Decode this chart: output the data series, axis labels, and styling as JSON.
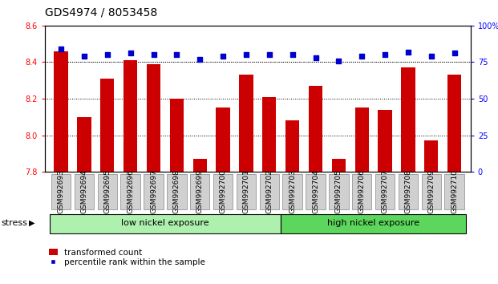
{
  "title": "GDS4974 / 8053458",
  "samples": [
    "GSM992693",
    "GSM992694",
    "GSM992695",
    "GSM992696",
    "GSM992697",
    "GSM992698",
    "GSM992699",
    "GSM992700",
    "GSM992701",
    "GSM992702",
    "GSM992703",
    "GSM992704",
    "GSM992705",
    "GSM992706",
    "GSM992707",
    "GSM992708",
    "GSM992709",
    "GSM992710"
  ],
  "transformed_count": [
    8.46,
    8.1,
    8.31,
    8.41,
    8.39,
    8.2,
    7.87,
    8.15,
    8.33,
    8.21,
    8.08,
    8.27,
    7.87,
    8.15,
    8.14,
    8.37,
    7.97,
    8.33
  ],
  "percentile_rank": [
    84,
    79,
    80,
    81,
    80,
    80,
    77,
    79,
    80,
    80,
    80,
    78,
    76,
    79,
    80,
    82,
    79,
    81
  ],
  "ylim_left": [
    7.8,
    8.6
  ],
  "ylim_right": [
    0,
    100
  ],
  "yticks_left": [
    7.8,
    8.0,
    8.2,
    8.4,
    8.6
  ],
  "yticks_right": [
    0,
    25,
    50,
    75,
    100
  ],
  "bar_color": "#cc0000",
  "scatter_color": "#0000cc",
  "bar_width": 0.6,
  "low_nickel_label": "low nickel exposure",
  "high_nickel_label": "high nickel exposure",
  "low_nickel_color": "#aef0ae",
  "high_nickel_color": "#5cd65c",
  "stress_label": "stress",
  "legend_bar_label": "transformed count",
  "legend_scatter_label": "percentile rank within the sample",
  "title_fontsize": 10,
  "tick_fontsize": 7,
  "label_fontsize": 8
}
